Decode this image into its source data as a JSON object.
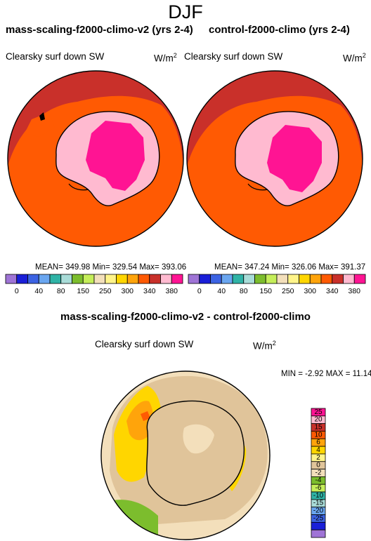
{
  "page": {
    "title": "DJF",
    "bottom_title": "mass-scaling-f2000-climo-v2 - control-f2000-climo"
  },
  "units_base": "W/m",
  "units_exp": "2",
  "panels": [
    {
      "title": "mass-scaling-f2000-climo-v2 (yrs 2-4)",
      "variable": "Clearsky surf down SW",
      "stats": "MEAN= 349.98  Min= 329.54  Max= 393.06"
    },
    {
      "title": "control-f2000-climo (yrs 2-4)",
      "variable": "Clearsky surf down SW",
      "stats": "MEAN= 347.24  Min= 326.06  Max= 391.37"
    },
    {
      "title": "mass-scaling-f2000-climo-v2 - control-f2000-climo",
      "variable": "Clearsky surf down SW",
      "stats": "MIN =  -2.92 MAX =  11.14"
    }
  ],
  "chart_data": [
    {
      "type": "heatmap",
      "title": "mass-scaling-f2000-climo-v2 (yrs 2-4)",
      "variable": "Clearsky surf down SW",
      "units": "W/m2",
      "projection": "south polar stereographic",
      "stats": {
        "mean": 349.98,
        "min": 329.54,
        "max": 393.06
      },
      "levels": [
        0,
        40,
        80,
        150,
        250,
        300,
        340,
        380
      ],
      "colors": [
        "#9f74d6",
        "#1a1fd8",
        "#3c63e3",
        "#6aa6f0",
        "#2fb3a6",
        "#a9dcd8",
        "#7cbd2d",
        "#c5ee5a",
        "#f3dfbb",
        "#fff48a",
        "#ffd600",
        "#ffa40b",
        "#ff5a03",
        "#c9302a",
        "#ffbad0",
        "#ff1493"
      ]
    },
    {
      "type": "heatmap",
      "title": "control-f2000-climo (yrs 2-4)",
      "variable": "Clearsky surf down SW",
      "units": "W/m2",
      "projection": "south polar stereographic",
      "stats": {
        "mean": 347.24,
        "min": 326.06,
        "max": 391.37
      },
      "levels": [
        0,
        40,
        80,
        150,
        250,
        300,
        340,
        380
      ],
      "colors": [
        "#9f74d6",
        "#1a1fd8",
        "#3c63e3",
        "#6aa6f0",
        "#2fb3a6",
        "#a9dcd8",
        "#7cbd2d",
        "#c5ee5a",
        "#f3dfbb",
        "#fff48a",
        "#ffd600",
        "#ffa40b",
        "#ff5a03",
        "#c9302a",
        "#ffbad0",
        "#ff1493"
      ]
    },
    {
      "type": "heatmap",
      "title": "mass-scaling-f2000-climo-v2 - control-f2000-climo",
      "variable": "Clearsky surf down SW",
      "units": "W/m2",
      "projection": "south polar stereographic",
      "stats": {
        "min": -2.92,
        "max": 11.14
      },
      "levels": [
        25,
        20,
        15,
        10,
        6,
        4,
        2,
        0,
        -2,
        -4,
        -6,
        -10,
        -15,
        -20,
        -25
      ],
      "colors": [
        "#ff1493",
        "#ffbad0",
        "#c9302a",
        "#ff5a03",
        "#ffa40b",
        "#ffd600",
        "#fff48a",
        "#e0c49a",
        "#f3dfbb",
        "#7cbd2d",
        "#c5ee5a",
        "#2fb3a6",
        "#a9dcd8",
        "#6aa6f0",
        "#3c63e3",
        "#1a1fd8",
        "#9f74d6"
      ]
    }
  ]
}
